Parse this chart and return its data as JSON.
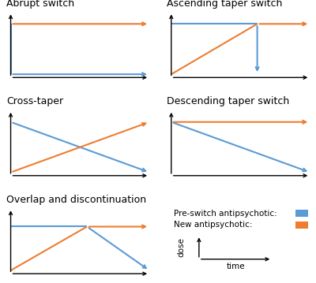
{
  "blue": "#5B9BD5",
  "orange": "#ED7D31",
  "black": "#000000",
  "bg": "#ffffff",
  "title_fontsize": 9,
  "panels": [
    {
      "title": "Abrupt switch",
      "row": 0,
      "col": 0,
      "lines": [
        {
          "color": "orange",
          "x": [
            0,
            1
          ],
          "y": [
            0.82,
            0.82
          ],
          "arrow": true
        },
        {
          "color": "blue",
          "x": [
            0,
            0
          ],
          "y": [
            0.82,
            0.05
          ],
          "arrow": false
        },
        {
          "color": "blue",
          "x": [
            0,
            1
          ],
          "y": [
            0.05,
            0.05
          ],
          "arrow": true
        }
      ]
    },
    {
      "title": "Ascending taper switch",
      "row": 0,
      "col": 1,
      "lines": [
        {
          "color": "blue",
          "x": [
            0,
            0.62
          ],
          "y": [
            0.82,
            0.82
          ],
          "arrow": false
        },
        {
          "color": "blue",
          "x": [
            0.62,
            0.62
          ],
          "y": [
            0.82,
            0.05
          ],
          "arrow": true
        },
        {
          "color": "orange",
          "x": [
            0,
            0.62
          ],
          "y": [
            0.05,
            0.82
          ],
          "arrow": false
        },
        {
          "color": "orange",
          "x": [
            0.62,
            1.0
          ],
          "y": [
            0.82,
            0.82
          ],
          "arrow": true
        }
      ]
    },
    {
      "title": "Cross-taper",
      "row": 1,
      "col": 0,
      "lines": [
        {
          "color": "blue",
          "x": [
            0,
            1
          ],
          "y": [
            0.82,
            0.05
          ],
          "arrow": true
        },
        {
          "color": "orange",
          "x": [
            0,
            1
          ],
          "y": [
            0.05,
            0.82
          ],
          "arrow": true
        }
      ]
    },
    {
      "title": "Descending taper switch",
      "row": 1,
      "col": 1,
      "lines": [
        {
          "color": "orange",
          "x": [
            0,
            1.0
          ],
          "y": [
            0.82,
            0.82
          ],
          "arrow": true
        },
        {
          "color": "blue",
          "x": [
            0,
            1.0
          ],
          "y": [
            0.82,
            0.05
          ],
          "arrow": true
        }
      ]
    },
    {
      "title": "Overlap and discontinuation",
      "row": 2,
      "col": 0,
      "lines": [
        {
          "color": "blue",
          "x": [
            0,
            0.55
          ],
          "y": [
            0.72,
            0.72
          ],
          "arrow": false
        },
        {
          "color": "blue",
          "x": [
            0.55,
            1.0
          ],
          "y": [
            0.72,
            0.05
          ],
          "arrow": true
        },
        {
          "color": "orange",
          "x": [
            0,
            0.55
          ],
          "y": [
            0.05,
            0.72
          ],
          "arrow": false
        },
        {
          "color": "orange",
          "x": [
            0.55,
            1.0
          ],
          "y": [
            0.72,
            0.72
          ],
          "arrow": true
        }
      ]
    }
  ]
}
